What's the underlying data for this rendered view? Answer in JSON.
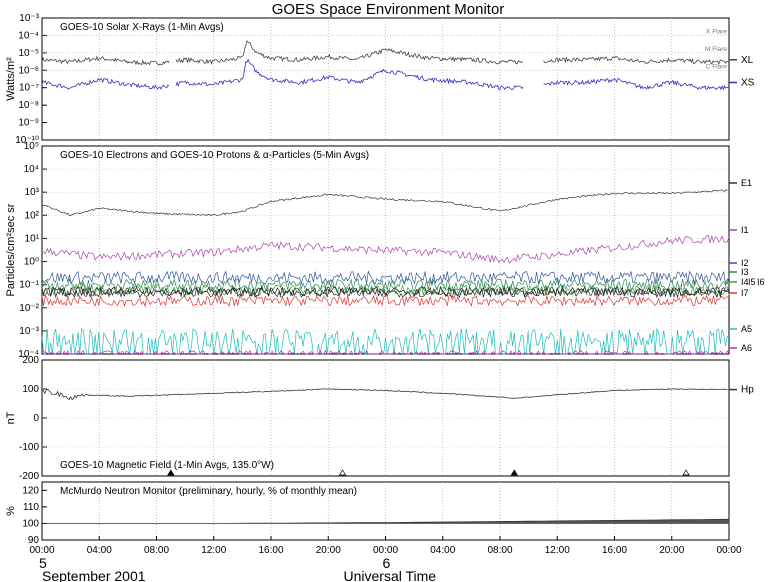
{
  "title": "GOES Space Environment Monitor",
  "x_axis": {
    "ticks": [
      "00:00",
      "04:00",
      "08:00",
      "12:00",
      "16:00",
      "20:00",
      "00:00",
      "04:00",
      "08:00",
      "12:00",
      "16:00",
      "20:00",
      "00:00"
    ],
    "day_labels": [
      "5",
      "6"
    ],
    "month_label": "September 2001",
    "xlabel": "Universal Time"
  },
  "chart_data": [
    {
      "type": "line",
      "panel": "xray",
      "title": "GOES-10 Solar X-Rays (1-Min Avgs)",
      "ylabel": "Watts/m²",
      "yscale": "log",
      "ylim": [
        1e-10,
        0.001
      ],
      "ytick_labels": [
        "10⁻³",
        "10⁻⁴",
        "10⁻⁵",
        "10⁻⁶",
        "10⁻⁷",
        "10⁻⁸",
        "10⁻⁹",
        "10⁻¹⁰"
      ],
      "flare_levels": [
        {
          "label": "X Flare",
          "value": 0.0001
        },
        {
          "label": "M Flare",
          "value": 1e-05
        },
        {
          "label": "C Flare",
          "value": 1e-06
        }
      ],
      "series": [
        {
          "name": "XL",
          "color": "#444444",
          "baseline": 4e-06,
          "x": [
            0,
            2,
            4,
            6,
            8,
            10,
            12,
            14,
            14.3,
            15,
            16,
            18,
            20,
            22,
            24,
            27,
            30,
            32,
            34,
            36,
            38,
            40,
            42,
            44,
            46,
            48
          ],
          "y": [
            4e-06,
            3e-06,
            5e-06,
            3e-06,
            2.5e-06,
            4e-06,
            3e-06,
            5e-06,
            5e-05,
            1e-05,
            5e-06,
            4e-06,
            6e-06,
            4e-06,
            1.5e-05,
            5e-06,
            4e-06,
            3e-06,
            3e-06,
            4e-06,
            4e-06,
            5e-06,
            3e-06,
            4e-06,
            3e-06,
            3e-06
          ]
        },
        {
          "name": "XS",
          "color": "#3333bb",
          "baseline": 2e-07,
          "x": [
            0,
            2,
            4,
            6,
            8,
            10,
            12,
            14,
            14.3,
            15,
            16,
            18,
            20,
            22,
            24,
            27,
            30,
            32,
            34,
            36,
            38,
            40,
            42,
            44,
            46,
            48
          ],
          "y": [
            2e-07,
            1e-07,
            3e-07,
            1.5e-07,
            1e-07,
            2e-07,
            1.5e-07,
            3e-07,
            4e-06,
            8e-07,
            3e-07,
            2e-07,
            4e-07,
            2e-07,
            1e-06,
            3e-07,
            2e-07,
            1e-07,
            1e-07,
            2e-07,
            2e-07,
            3e-07,
            1e-07,
            2e-07,
            1e-07,
            1e-07
          ]
        }
      ],
      "gaps_hours": [
        [
          8.9,
          9.3
        ],
        [
          33.6,
          35.0
        ]
      ]
    },
    {
      "type": "line",
      "panel": "particles",
      "title": "GOES-10 Electrons and GOES-10 Protons & α-Particles (5-Min Avgs)",
      "ylabel": "Particles/cm²sec sr",
      "yscale": "log",
      "ylim": [
        0.0001,
        100000.0
      ],
      "ytick_labels": [
        "10⁵",
        "10⁴",
        "10³",
        "10²",
        "10¹",
        "10⁰",
        "10⁻¹",
        "10⁻²",
        "10⁻³",
        "10⁻⁴"
      ],
      "series": [
        {
          "name": "E1",
          "color": "#333333",
          "x": [
            0,
            2,
            4,
            8,
            12,
            14,
            16,
            20,
            24,
            28,
            32,
            36,
            40,
            44,
            48
          ],
          "y": [
            300,
            100,
            200,
            120,
            100,
            150,
            400,
            800,
            500,
            400,
            150,
            500,
            900,
            900,
            1200
          ]
        },
        {
          "name": "I1",
          "color": "#aa44aa",
          "x": [
            0,
            4,
            8,
            12,
            16,
            20,
            24,
            28,
            32,
            36,
            40,
            44,
            48
          ],
          "y": [
            3,
            1.5,
            2,
            2.5,
            5,
            4,
            3,
            2.5,
            1.2,
            2,
            4,
            8,
            10
          ]
        },
        {
          "name": "I2",
          "color": "#335599",
          "x": [
            0,
            48
          ],
          "y": [
            0.2,
            0.2
          ]
        },
        {
          "name": "I3",
          "color": "#2a8a55",
          "x": [
            0,
            48
          ],
          "y": [
            0.1,
            0.1
          ]
        },
        {
          "name": "I4",
          "color": "#3aa040",
          "x": [
            0,
            48
          ],
          "y": [
            0.06,
            0.06
          ]
        },
        {
          "name": "I5",
          "color": "#222222",
          "x": [
            0,
            48
          ],
          "y": [
            0.05,
            0.05
          ]
        },
        {
          "name": "I6",
          "color": "#222222",
          "x": [
            0,
            48
          ],
          "y": [
            0.045,
            0.045
          ]
        },
        {
          "name": "I7",
          "color": "#dd3333",
          "x": [
            0,
            48
          ],
          "y": [
            0.02,
            0.02
          ]
        },
        {
          "name": "A5",
          "color": "#22bbbb",
          "x": [
            0,
            48
          ],
          "y": [
            0.0005,
            0.0005
          ]
        },
        {
          "name": "A6",
          "color": "#cc22cc",
          "x": [
            0,
            48
          ],
          "y": [
            0.0001,
            0.0001
          ]
        }
      ]
    },
    {
      "type": "line",
      "panel": "magnetic",
      "title": "GOES-10 Magnetic Field (1-Min Avgs, 135.0°W)",
      "ylabel": "nT",
      "ylim": [
        -200,
        200
      ],
      "ytick_labels": [
        "200",
        "100",
        "0",
        "-100",
        "-200"
      ],
      "markers": [
        {
          "hour": 9,
          "kind": "filled-triangle"
        },
        {
          "hour": 21,
          "kind": "open-triangle"
        },
        {
          "hour": 33,
          "kind": "filled-triangle"
        },
        {
          "hour": 45,
          "kind": "open-triangle"
        }
      ],
      "series": [
        {
          "name": "Hp",
          "color": "#333333",
          "x": [
            0,
            1,
            2,
            3,
            6,
            9,
            12,
            16,
            20,
            24,
            28,
            32,
            33,
            36,
            40,
            44,
            48
          ],
          "y": [
            95,
            85,
            70,
            80,
            75,
            80,
            85,
            92,
            100,
            95,
            85,
            72,
            68,
            80,
            95,
            100,
            98
          ]
        }
      ]
    },
    {
      "type": "line",
      "panel": "neutron",
      "title": "McMurdo Neutron Monitor (preliminary, hourly, % of monthly mean)",
      "ylabel": "%",
      "ylim": [
        90,
        125
      ],
      "ytick_labels": [
        "120",
        "110",
        "100",
        "90"
      ],
      "series": [
        {
          "name": "",
          "color": "#444444",
          "x": [
            0,
            12,
            24,
            30,
            36,
            42,
            48
          ],
          "y": [
            100,
            100,
            100.5,
            101,
            101.5,
            102,
            102.5
          ]
        }
      ]
    }
  ]
}
